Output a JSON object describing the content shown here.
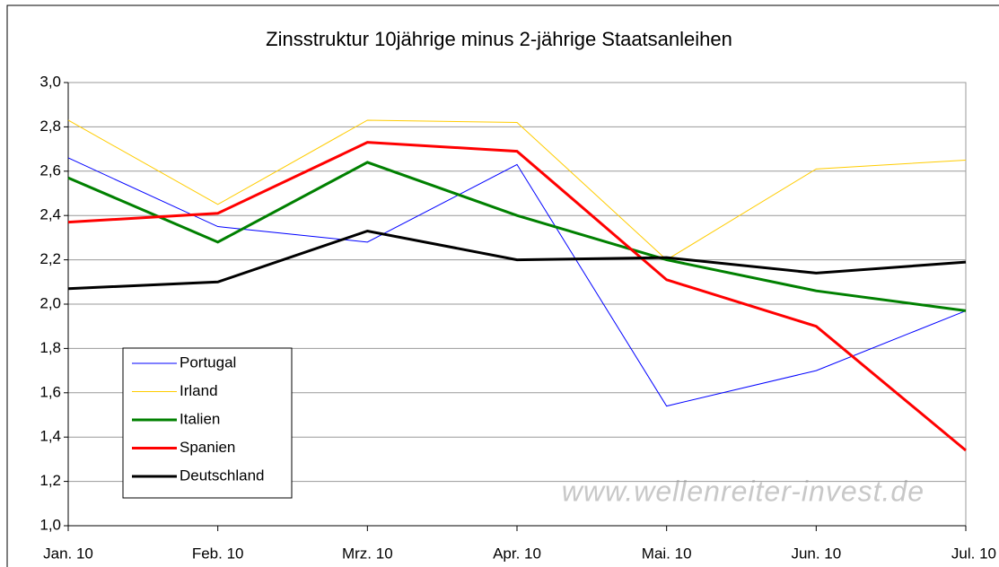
{
  "chart_data": {
    "type": "line",
    "title": "Zinsstruktur 10jährige minus 2-jährige Staatsanleihen",
    "annotation": "www.wellenreiter-invest.de",
    "categories": [
      "Jan. 10",
      "Feb. 10",
      "Mrz. 10",
      "Apr. 10",
      "Mai. 10",
      "Jun. 10",
      "Jul. 10"
    ],
    "series": [
      {
        "name": "Portugal",
        "color": "#0000ff",
        "width": 1,
        "values": [
          2.66,
          2.35,
          2.28,
          2.63,
          1.54,
          1.7,
          1.97
        ]
      },
      {
        "name": "Irland",
        "color": "#ffcc00",
        "width": 1,
        "values": [
          2.83,
          2.45,
          2.83,
          2.82,
          2.2,
          2.61,
          2.65
        ]
      },
      {
        "name": "Italien",
        "color": "#008000",
        "width": 3,
        "values": [
          2.57,
          2.28,
          2.64,
          2.4,
          2.2,
          2.06,
          1.97
        ]
      },
      {
        "name": "Spanien",
        "color": "#ff0000",
        "width": 3,
        "values": [
          2.37,
          2.41,
          2.73,
          2.69,
          2.11,
          1.9,
          1.34
        ]
      },
      {
        "name": "Deutschland",
        "color": "#000000",
        "width": 3,
        "values": [
          2.07,
          2.1,
          2.33,
          2.2,
          2.21,
          2.14,
          2.19
        ]
      }
    ],
    "ylim": [
      1.0,
      3.0
    ],
    "yticks": [
      {
        "value": 1.0,
        "label": "1,0"
      },
      {
        "value": 1.2,
        "label": "1,2"
      },
      {
        "value": 1.4,
        "label": "1,4"
      },
      {
        "value": 1.6,
        "label": "1,6"
      },
      {
        "value": 1.8,
        "label": "1,8"
      },
      {
        "value": 2.0,
        "label": "2,0"
      },
      {
        "value": 2.2,
        "label": "2,2"
      },
      {
        "value": 2.4,
        "label": "2,4"
      },
      {
        "value": 2.6,
        "label": "2,6"
      },
      {
        "value": 2.8,
        "label": "2,8"
      },
      {
        "value": 3.0,
        "label": "3,0"
      }
    ],
    "grid": true
  }
}
